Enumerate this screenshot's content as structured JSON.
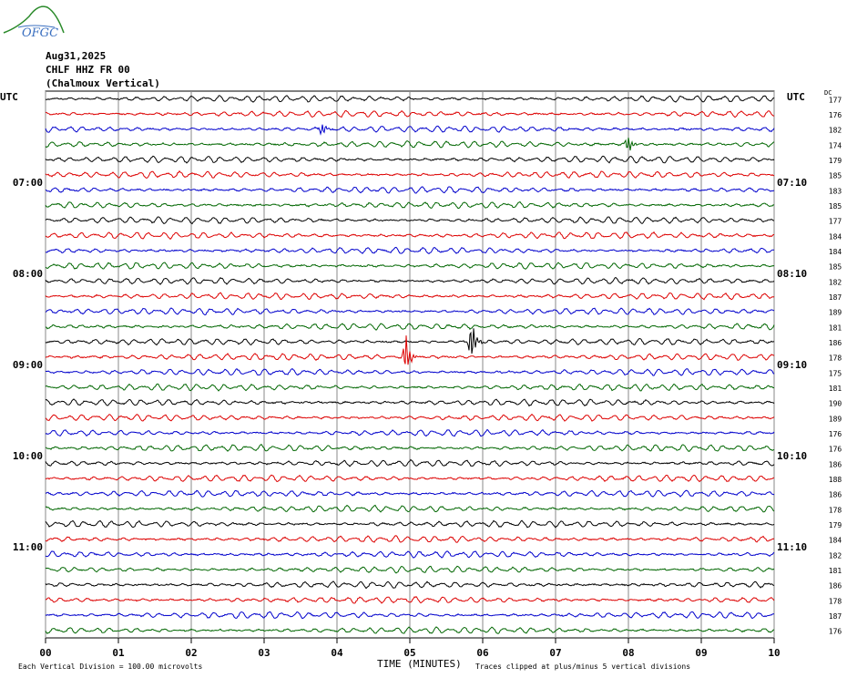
{
  "logo_text": "OFGC",
  "header": {
    "date": "Aug31,2025",
    "channel": "CHLF HHZ FR 00",
    "station_name": "(Chalmoux Vertical)"
  },
  "left_axis_label": "UTC",
  "right_axis_label": "UTC",
  "dc_label": "DC",
  "footer": {
    "scale_note": "Each Vertical Division = 100.00 microvolts",
    "xlabel": "TIME (MINUTES)",
    "clip_note": "Traces clipped at plus/minus 5 vertical divisions"
  },
  "chart_data": {
    "type": "line",
    "title": "CHLF HHZ FR 00",
    "xlabel": "TIME (MINUTES)",
    "xlim": [
      0,
      10
    ],
    "x_ticks": [
      "00",
      "01",
      "02",
      "03",
      "04",
      "05",
      "06",
      "07",
      "08",
      "09",
      "10"
    ],
    "grid": true,
    "trace_colors": [
      "#000000",
      "#dd0000",
      "#0000cc",
      "#006600"
    ],
    "left_hour_labels": [
      {
        "row": 6,
        "label": "07:00"
      },
      {
        "row": 12,
        "label": "08:00"
      },
      {
        "row": 18,
        "label": "09:00"
      },
      {
        "row": 24,
        "label": "10:00"
      },
      {
        "row": 30,
        "label": "11:00"
      }
    ],
    "right_hour_labels": [
      {
        "row": 6,
        "label": "07:10"
      },
      {
        "row": 12,
        "label": "08:10"
      },
      {
        "row": 18,
        "label": "09:10"
      },
      {
        "row": 24,
        "label": "10:10"
      },
      {
        "row": 30,
        "label": "11:10"
      }
    ],
    "dc_offsets": [
      177,
      176,
      182,
      174,
      179,
      185,
      183,
      185,
      177,
      184,
      184,
      185,
      182,
      187,
      189,
      181,
      186,
      178,
      175,
      181,
      190,
      189,
      176,
      176,
      186,
      188,
      186,
      178,
      179,
      184,
      182,
      181,
      186,
      178,
      187,
      176
    ],
    "events": [
      {
        "row": 3,
        "minute": 8.0,
        "amplitude": 0.35
      },
      {
        "row": 2,
        "minute": 3.8,
        "amplitude": 0.25
      },
      {
        "row": 16,
        "minute": 5.85,
        "amplitude": 0.9
      },
      {
        "row": 17,
        "minute": 4.95,
        "amplitude": 0.85
      }
    ]
  }
}
